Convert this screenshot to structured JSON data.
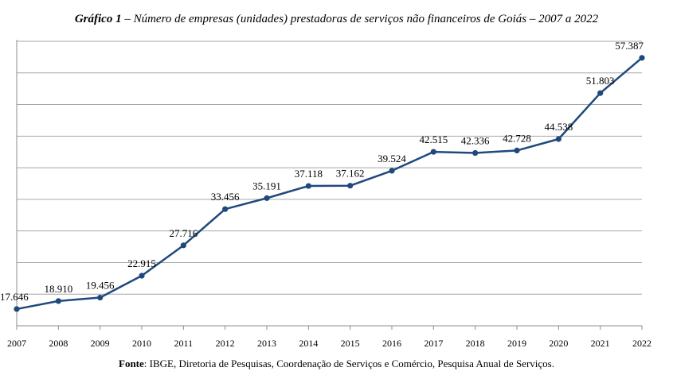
{
  "title": {
    "prefix": "Gráfico 1",
    "text": " – Número de empresas (unidades) prestadoras de serviços não financeiros de Goiás – 2007 a 2022"
  },
  "source": {
    "prefix": "Fonte",
    "text": ": IBGE, Diretoria de Pesquisas, Coordenação de Serviços e Comércio, Pesquisa Anual de Serviços."
  },
  "colors": {
    "series": "#1f497d",
    "grid": "#a6a6a6"
  },
  "chart_data": {
    "type": "line",
    "title": "Gráfico 1 – Número de empresas (unidades) prestadoras de serviços não financeiros de Goiás – 2007 a 2022",
    "xlabel": "",
    "ylabel": "",
    "categories": [
      "2007",
      "2008",
      "2009",
      "2010",
      "2011",
      "2012",
      "2013",
      "2014",
      "2015",
      "2016",
      "2017",
      "2018",
      "2019",
      "2020",
      "2021",
      "2022"
    ],
    "series": [
      {
        "values": [
          17646,
          18910,
          19456,
          22915,
          27716,
          33456,
          35191,
          37118,
          37162,
          39524,
          42515,
          42336,
          42728,
          44538,
          51803,
          57387
        ],
        "labels": [
          "17.646",
          "18.910",
          "19.456",
          "22.915",
          "27.716",
          "33.456",
          "35.191",
          "37.118",
          "37.162",
          "39.524",
          "42.515",
          "42.336",
          "42.728",
          "44.538",
          "51.803",
          "57.387"
        ]
      }
    ],
    "ylim": [
      15000,
      60000
    ],
    "grid": true,
    "y_tick_labels_shown": false,
    "legend": "none"
  }
}
